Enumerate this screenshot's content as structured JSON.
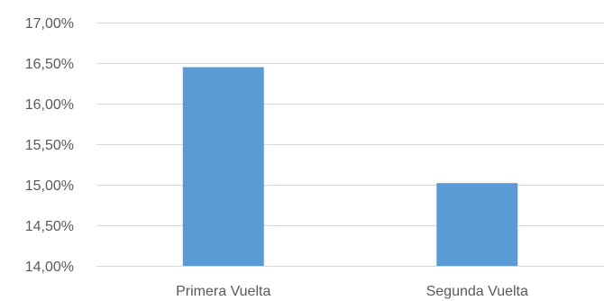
{
  "chart_data": {
    "type": "bar",
    "title": "",
    "xlabel": "",
    "ylabel": "",
    "categories": [
      "Primera Vuelta",
      "Segunda Vuelta"
    ],
    "values": [
      16.45,
      15.02
    ],
    "ylim": [
      14.0,
      17.0
    ],
    "y_ticks": [
      14.0,
      14.5,
      15.0,
      15.5,
      16.0,
      16.5,
      17.0
    ],
    "y_tick_labels": [
      "14,00%",
      "14,50%",
      "15,00%",
      "15,50%",
      "16,00%",
      "16,50%",
      "17,00%"
    ],
    "grid": true,
    "legend": "none",
    "bar_color": "#5b9bd5",
    "grid_color": "#d9d9d9",
    "label_color": "#595959"
  }
}
